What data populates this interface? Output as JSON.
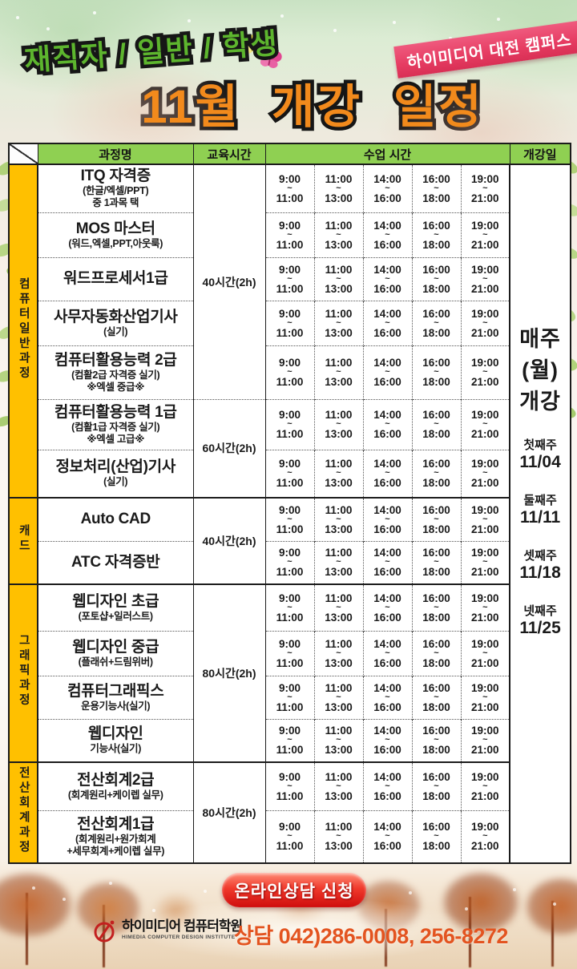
{
  "page": {
    "campus_ribbon": "하이미디어 대전 캠퍼스",
    "audience": "재직자 / 일반 / 학생",
    "title": "11월 개강 일정"
  },
  "table": {
    "headers": {
      "course": "과정명",
      "hours": "교육시간",
      "class_time": "수업 시간",
      "start_date": "개강일"
    },
    "tilde": "~",
    "time_slots": [
      {
        "from": "9:00",
        "to": "11:00"
      },
      {
        "from": "11:00",
        "to": "13:00"
      },
      {
        "from": "14:00",
        "to": "16:00"
      },
      {
        "from": "16:00",
        "to": "18:00"
      },
      {
        "from": "19:00",
        "to": "21:00"
      }
    ],
    "sections": [
      {
        "category": "컴퓨터일반과정",
        "hours_cells": [
          {
            "label": "40시간(2h)",
            "rows": 5
          },
          {
            "label": "60시간(2h)",
            "rows": 2
          }
        ],
        "rows": [
          {
            "name": "ITQ 자격증",
            "subs": [
              "(한글/엑셀/PPT)",
              "중 1과목 택"
            ]
          },
          {
            "name": "MOS 마스터",
            "subs": [
              "(워드,엑셀,PPT,아웃룩)"
            ]
          },
          {
            "name": "워드프로세서1급",
            "subs": []
          },
          {
            "name": "사무자동화산업기사",
            "subs": [
              "(실기)"
            ]
          },
          {
            "name": "컴퓨터활용능력 2급",
            "subs": [
              "(컴활2급 자격증 실기)",
              "※엑셀 중급※"
            ]
          },
          {
            "name": "컴퓨터활용능력 1급",
            "subs": [
              "(컴활1급 자격증 실기)",
              "※엑셀 고급※"
            ]
          },
          {
            "name": "정보처리(산업)기사",
            "subs": [
              "(실기)"
            ]
          }
        ]
      },
      {
        "category": "캐드",
        "hours_cells": [
          {
            "label": "40시간(2h)",
            "rows": 2
          }
        ],
        "rows": [
          {
            "name": "Auto CAD",
            "subs": []
          },
          {
            "name": "ATC 자격증반",
            "subs": []
          }
        ]
      },
      {
        "category": "그래픽과정",
        "hours_cells": [
          {
            "label": "80시간(2h)",
            "rows": 4
          }
        ],
        "rows": [
          {
            "name": "웹디자인 초급",
            "subs": [
              "(포토샵+일러스트)"
            ]
          },
          {
            "name": "웹디자인 중급",
            "subs": [
              "(플래쉬+드림위버)"
            ]
          },
          {
            "name": "컴퓨터그래픽스",
            "subs": [
              "운용기능사(실기)"
            ]
          },
          {
            "name": "웹디자인",
            "subs": [
              "기능사(실기)"
            ]
          }
        ]
      },
      {
        "category": "전산회계과정",
        "hours_cells": [
          {
            "label": "80시간(2h)",
            "rows": 2
          }
        ],
        "rows": [
          {
            "name": "전산회계2급",
            "subs": [
              "(회계원리+케이렙 실무)"
            ]
          },
          {
            "name": "전산회계1급",
            "subs": [
              "(회계원리+원가회계",
              "+세무회계+케이렙 실무)"
            ]
          }
        ]
      }
    ],
    "start_date_cell": {
      "weekly_lines": [
        "매주",
        "(월)",
        "개강"
      ],
      "weeks": [
        {
          "week": "첫째주",
          "date": "11/04"
        },
        {
          "week": "둘째주",
          "date": "11/11"
        },
        {
          "week": "셋째주",
          "date": "11/18"
        },
        {
          "week": "넷째주",
          "date": "11/25"
        }
      ]
    }
  },
  "footer": {
    "cta_button": "온라인상담 신청",
    "logo_title": "하이미디어 컴퓨터학원",
    "logo_subtitle": "HIMEDIA COMPUTER DESIGN INSTITUTE",
    "phone": "상담 042)286-0008, 256-8272"
  },
  "colors": {
    "header_green": "#8fd052",
    "category_orange": "#ffc000",
    "ribbon_pink": "#e63c62",
    "title_orange": "#f28a1c",
    "audience_green": "#5db52e",
    "cta_red": "#e01414",
    "phone_orange": "#e35420"
  }
}
